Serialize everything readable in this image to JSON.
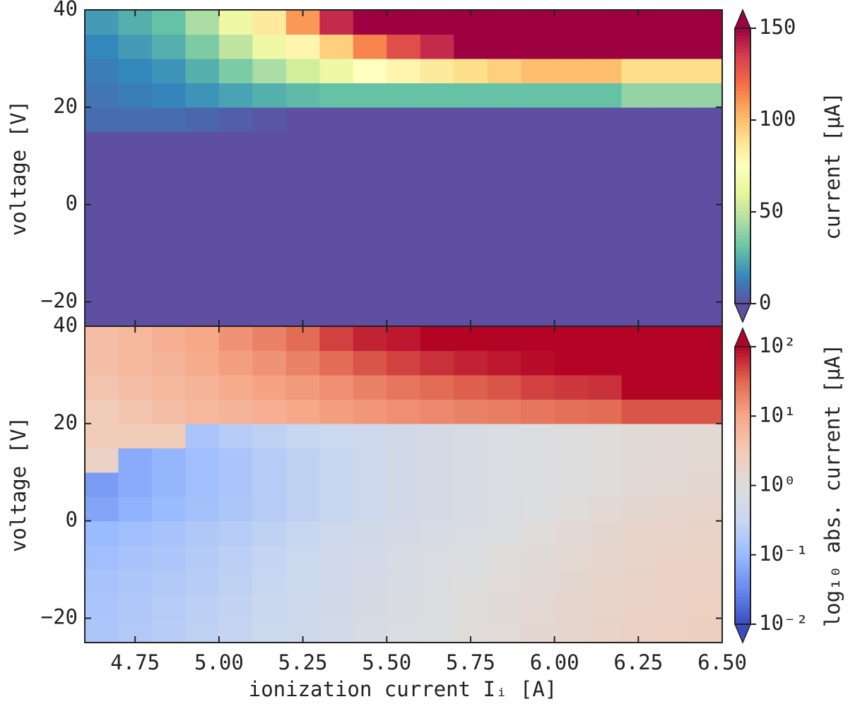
{
  "chart_data": [
    {
      "type": "heatmap",
      "ylabel": "voltage [V]",
      "colorbar_label": "current [μA]",
      "colormap": "Spectral_r",
      "extend": "both",
      "xlim": [
        4.6,
        6.5
      ],
      "ylim": [
        -25,
        40
      ],
      "yticks": [
        {
          "value": -20,
          "label": "−20"
        },
        0,
        20,
        40
      ],
      "zlim": [
        0,
        150
      ],
      "zticks": [
        0,
        50,
        100,
        150
      ],
      "x": [
        4.65,
        4.75,
        4.85,
        4.95,
        5.05,
        5.15,
        5.25,
        5.35,
        5.45,
        5.55,
        5.65,
        5.75,
        5.85,
        5.95,
        6.05,
        6.15,
        6.25,
        6.35,
        6.45
      ],
      "y": [
        -22.5,
        -17.5,
        -12.5,
        -7.5,
        -2.5,
        2.5,
        7.5,
        12.5,
        17.5,
        22.5,
        27.5,
        32.5,
        37.5
      ],
      "z": [
        [
          0,
          0,
          0,
          0,
          0,
          0,
          0,
          0,
          0,
          0,
          0,
          0,
          0,
          0,
          0,
          0,
          0,
          0,
          0
        ],
        [
          0,
          0,
          0,
          0,
          0,
          0,
          0,
          0,
          0,
          0,
          0,
          0,
          0,
          0,
          0,
          0,
          0,
          0,
          0
        ],
        [
          0,
          0,
          0,
          0,
          0,
          0,
          0,
          0,
          0,
          0,
          0,
          0,
          0,
          0,
          0,
          0,
          0,
          0,
          0
        ],
        [
          0,
          0,
          0,
          0,
          0,
          0,
          0,
          0,
          0,
          0,
          0,
          0,
          0,
          0,
          0,
          0,
          0,
          0,
          0
        ],
        [
          0,
          0,
          0,
          0,
          0,
          0,
          0,
          0,
          0,
          0,
          0,
          0,
          0,
          0,
          0,
          0,
          0,
          0,
          0
        ],
        [
          0,
          0,
          0,
          0,
          0,
          0,
          0,
          0,
          0,
          0,
          0,
          0,
          0,
          0,
          0,
          0,
          0,
          0,
          0
        ],
        [
          0,
          0,
          0,
          0,
          0,
          0,
          0,
          0,
          0,
          0,
          0,
          0,
          0,
          0,
          0,
          0,
          0,
          0,
          0
        ],
        [
          0,
          0,
          0,
          0,
          0,
          0,
          0,
          0,
          0,
          0,
          0,
          0,
          0,
          0,
          0,
          0,
          0,
          0,
          0
        ],
        [
          8,
          8,
          8,
          6,
          4,
          2,
          0,
          0,
          0,
          0,
          0,
          0,
          0,
          0,
          0,
          0,
          0,
          0,
          0
        ],
        [
          10,
          12,
          14,
          18,
          22,
          25,
          28,
          30,
          30,
          30,
          30,
          30,
          30,
          30,
          30,
          30,
          40,
          40,
          40
        ],
        [
          12,
          15,
          18,
          25,
          35,
          45,
          55,
          65,
          75,
          80,
          85,
          90,
          95,
          100,
          100,
          100,
          90,
          90,
          90
        ],
        [
          15,
          20,
          25,
          35,
          50,
          65,
          80,
          95,
          115,
          130,
          140,
          150,
          150,
          150,
          150,
          150,
          150,
          150,
          150
        ],
        [
          20,
          25,
          30,
          45,
          65,
          85,
          110,
          140,
          150,
          150,
          150,
          150,
          150,
          150,
          150,
          150,
          150,
          150,
          150
        ]
      ]
    },
    {
      "type": "heatmap",
      "ylabel": "voltage [V]",
      "xlabel": "ionization current Iᵢ [A]",
      "colorbar_label": "log₁₀ abs. current [μA]",
      "colormap": "coolwarm",
      "extend": "both",
      "zscale": "log",
      "xlim": [
        4.6,
        6.5
      ],
      "ylim": [
        -25,
        40
      ],
      "xticks": [
        4.75,
        {
          "value": 5,
          "label": "5.00"
        },
        5.25,
        {
          "value": 5.5,
          "label": "5.50"
        },
        5.75,
        {
          "value": 6,
          "label": "6.00"
        },
        6.25,
        {
          "value": 6.5,
          "label": "6.50"
        }
      ],
      "yticks": [
        {
          "value": -20,
          "label": "−20"
        },
        0,
        20,
        40
      ],
      "zlim": [
        0.01,
        100
      ],
      "zticks": [
        {
          "value": 0.01,
          "label": "10⁻²"
        },
        {
          "value": 0.1,
          "label": "10⁻¹"
        },
        {
          "value": 1,
          "label": "10⁰"
        },
        {
          "value": 10,
          "label": "10¹"
        },
        {
          "value": 100,
          "label": "10²"
        }
      ],
      "x": [
        4.65,
        4.75,
        4.85,
        4.95,
        5.05,
        5.15,
        5.25,
        5.35,
        5.45,
        5.55,
        5.65,
        5.75,
        5.85,
        5.95,
        6.05,
        6.15,
        6.25,
        6.35,
        6.45
      ],
      "y": [
        -22.5,
        -17.5,
        -12.5,
        -7.5,
        -2.5,
        2.5,
        7.5,
        12.5,
        17.5,
        22.5,
        27.5,
        32.5,
        37.5
      ],
      "z": [
        [
          0.16,
          0.18,
          0.21,
          0.25,
          0.29,
          0.35,
          0.42,
          0.52,
          0.65,
          0.78,
          0.95,
          1.1,
          1.25,
          1.45,
          1.65,
          1.9,
          2.1,
          2.3,
          2.4
        ],
        [
          0.15,
          0.17,
          0.2,
          0.23,
          0.27,
          0.33,
          0.4,
          0.5,
          0.62,
          0.75,
          0.9,
          1.05,
          1.2,
          1.4,
          1.6,
          1.8,
          2,
          2.2,
          2.3
        ],
        [
          0.14,
          0.16,
          0.18,
          0.21,
          0.25,
          0.3,
          0.38,
          0.48,
          0.6,
          0.7,
          0.85,
          1,
          1.15,
          1.3,
          1.5,
          1.7,
          1.9,
          2.1,
          2.2
        ],
        [
          0.12,
          0.14,
          0.16,
          0.19,
          0.23,
          0.28,
          0.35,
          0.45,
          0.55,
          0.65,
          0.8,
          0.9,
          1.05,
          1.2,
          1.4,
          1.6,
          1.8,
          2,
          2
        ],
        [
          0.1,
          0.12,
          0.14,
          0.17,
          0.2,
          0.25,
          0.3,
          0.4,
          0.5,
          0.6,
          0.7,
          0.8,
          0.95,
          1.1,
          1.3,
          1.5,
          1.7,
          1.8,
          1.9
        ],
        [
          0.06,
          0.08,
          0.1,
          0.13,
          0.16,
          0.2,
          0.25,
          0.3,
          0.4,
          0.5,
          0.6,
          0.7,
          0.8,
          0.95,
          1.1,
          1.3,
          1.5,
          1.6,
          1.7
        ],
        [
          0.05,
          0.07,
          0.09,
          0.12,
          0.15,
          0.2,
          0.25,
          0.3,
          0.4,
          0.5,
          0.6,
          0.7,
          0.8,
          0.9,
          1,
          1.1,
          1.3,
          1.4,
          1.5
        ],
        [
          2,
          0.07,
          0.09,
          0.12,
          0.15,
          0.2,
          0.25,
          0.3,
          0.4,
          0.5,
          0.6,
          0.7,
          0.8,
          0.9,
          1,
          1.1,
          1.2,
          1.3,
          1.4
        ],
        [
          3,
          3,
          3,
          0.15,
          0.2,
          0.25,
          0.3,
          0.35,
          0.4,
          0.5,
          0.6,
          0.7,
          0.8,
          0.9,
          1,
          1.1,
          1.2,
          1.3,
          1.4
        ],
        [
          3,
          4,
          5,
          6,
          7,
          8,
          10,
          12,
          14,
          16,
          18,
          20,
          22,
          25,
          28,
          30,
          40,
          40,
          40
        ],
        [
          4,
          5,
          6,
          7,
          9,
          11,
          13,
          16,
          20,
          25,
          30,
          35,
          40,
          50,
          55,
          60,
          100,
          100,
          100
        ],
        [
          5,
          6,
          7,
          9,
          12,
          15,
          20,
          30,
          40,
          50,
          60,
          70,
          80,
          90,
          100,
          100,
          100,
          100,
          100
        ],
        [
          5,
          6,
          8,
          10,
          15,
          20,
          30,
          50,
          70,
          80,
          100,
          100,
          100,
          100,
          100,
          100,
          100,
          100,
          100
        ]
      ]
    }
  ]
}
